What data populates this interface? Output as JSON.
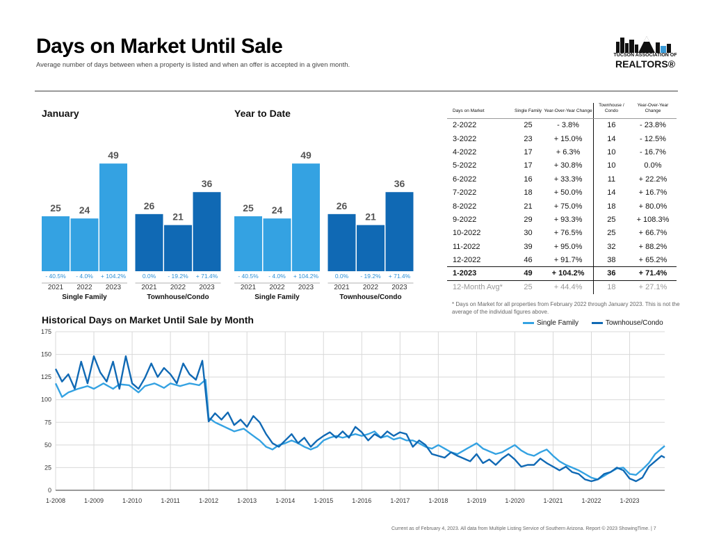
{
  "header": {
    "title": "Days on Market Until Sale",
    "subtitle": "Average number of days between when a property is listed and when an offer is accepted in a given month."
  },
  "logo": {
    "line1": "TUCSON ASSOCIATION OF",
    "line2": "REALTORS®"
  },
  "colors": {
    "single_family": "#34a2e2",
    "townhouse": "#1069b4",
    "pct_text": "#2a8fd6",
    "grid": "#d8d8d8"
  },
  "chart_data": [
    {
      "type": "bar",
      "title": "January",
      "groups": [
        {
          "name": "Single Family",
          "categories": [
            "2021",
            "2022",
            "2023"
          ],
          "values": [
            25,
            24,
            49
          ],
          "changes": [
            "- 40.5%",
            "- 4.0%",
            "+ 104.2%"
          ]
        },
        {
          "name": "Townhouse/Condo",
          "categories": [
            "2021",
            "2022",
            "2023"
          ],
          "values": [
            26,
            21,
            36
          ],
          "changes": [
            "0.0%",
            "- 19.2%",
            "+ 71.4%"
          ]
        }
      ]
    },
    {
      "type": "bar",
      "title": "Year to Date",
      "groups": [
        {
          "name": "Single Family",
          "categories": [
            "2021",
            "2022",
            "2023"
          ],
          "values": [
            25,
            24,
            49
          ],
          "changes": [
            "- 40.5%",
            "- 4.0%",
            "+ 104.2%"
          ]
        },
        {
          "name": "Townhouse/Condo",
          "categories": [
            "2021",
            "2022",
            "2023"
          ],
          "values": [
            26,
            21,
            36
          ],
          "changes": [
            "0.0%",
            "- 19.2%",
            "+ 71.4%"
          ]
        }
      ]
    },
    {
      "type": "table",
      "columns": [
        "Days on Market",
        "Single Family",
        "Year-Over-Year Change",
        "Townhouse / Condo",
        "Year-Over-Year Change"
      ],
      "rows": [
        [
          "2-2022",
          "25",
          "- 3.8%",
          "16",
          "- 23.8%"
        ],
        [
          "3-2022",
          "23",
          "+ 15.0%",
          "14",
          "- 12.5%"
        ],
        [
          "4-2022",
          "17",
          "+ 6.3%",
          "10",
          "- 16.7%"
        ],
        [
          "5-2022",
          "17",
          "+ 30.8%",
          "10",
          "0.0%"
        ],
        [
          "6-2022",
          "16",
          "+ 33.3%",
          "11",
          "+ 22.2%"
        ],
        [
          "7-2022",
          "18",
          "+ 50.0%",
          "14",
          "+ 16.7%"
        ],
        [
          "8-2022",
          "21",
          "+ 75.0%",
          "18",
          "+ 80.0%"
        ],
        [
          "9-2022",
          "29",
          "+ 93.3%",
          "25",
          "+ 108.3%"
        ],
        [
          "10-2022",
          "30",
          "+ 76.5%",
          "25",
          "+ 66.7%"
        ],
        [
          "11-2022",
          "39",
          "+ 95.0%",
          "32",
          "+ 88.2%"
        ],
        [
          "12-2022",
          "46",
          "+ 91.7%",
          "38",
          "+ 65.2%"
        ],
        [
          "1-2023",
          "49",
          "+ 104.2%",
          "36",
          "+ 71.4%"
        ],
        [
          "12-Month Avg*",
          "25",
          "+ 44.4%",
          "18",
          "+ 27.1%"
        ]
      ],
      "footnote": "* Days on Market for all properties from February 2022 through January 2023. This is not the average of the individual figures above."
    },
    {
      "type": "line",
      "title": "Historical Days on Market Until Sale by Month",
      "x_ticks": [
        "1-2008",
        "1-2009",
        "1-2010",
        "1-2011",
        "1-2012",
        "1-2013",
        "1-2014",
        "1-2015",
        "1-2016",
        "1-2017",
        "1-2018",
        "1-2019",
        "1-2020",
        "1-2021",
        "1-2022",
        "1-2023"
      ],
      "y_ticks": [
        "0",
        "25",
        "50",
        "75",
        "100",
        "125",
        "150",
        "175"
      ],
      "ylim": [
        0,
        175
      ],
      "x_start": "1-2008",
      "grid": true,
      "legend": "top-right",
      "series": [
        {
          "name": "Single Family",
          "anchors": [
            [
              0,
              118
            ],
            [
              2,
              103
            ],
            [
              4,
              108
            ],
            [
              7,
              112
            ],
            [
              10,
              115
            ],
            [
              12,
              112
            ],
            [
              15,
              118
            ],
            [
              18,
              112
            ],
            [
              20,
              117
            ],
            [
              23,
              116
            ],
            [
              26,
              108
            ],
            [
              28,
              115
            ],
            [
              31,
              118
            ],
            [
              34,
              113
            ],
            [
              36,
              118
            ],
            [
              39,
              115
            ],
            [
              42,
              118
            ],
            [
              45,
              116
            ],
            [
              47,
              122
            ],
            [
              48,
              80
            ],
            [
              50,
              75
            ],
            [
              53,
              70
            ],
            [
              56,
              65
            ],
            [
              59,
              68
            ],
            [
              62,
              60
            ],
            [
              64,
              55
            ],
            [
              66,
              48
            ],
            [
              68,
              45
            ],
            [
              70,
              50
            ],
            [
              72,
              52
            ],
            [
              74,
              55
            ],
            [
              76,
              52
            ],
            [
              78,
              48
            ],
            [
              80,
              45
            ],
            [
              82,
              48
            ],
            [
              84,
              55
            ],
            [
              86,
              58
            ],
            [
              88,
              60
            ],
            [
              90,
              58
            ],
            [
              92,
              60
            ],
            [
              94,
              62
            ],
            [
              96,
              60
            ],
            [
              98,
              62
            ],
            [
              100,
              65
            ],
            [
              102,
              58
            ],
            [
              104,
              60
            ],
            [
              106,
              56
            ],
            [
              108,
              58
            ],
            [
              110,
              55
            ],
            [
              112,
              55
            ],
            [
              114,
              52
            ],
            [
              116,
              48
            ],
            [
              118,
              46
            ],
            [
              120,
              50
            ],
            [
              122,
              46
            ],
            [
              124,
              42
            ],
            [
              126,
              40
            ],
            [
              128,
              44
            ],
            [
              130,
              48
            ],
            [
              132,
              52
            ],
            [
              134,
              46
            ],
            [
              136,
              43
            ],
            [
              138,
              40
            ],
            [
              140,
              42
            ],
            [
              142,
              46
            ],
            [
              144,
              50
            ],
            [
              146,
              44
            ],
            [
              148,
              40
            ],
            [
              150,
              38
            ],
            [
              152,
              42
            ],
            [
              154,
              45
            ],
            [
              156,
              38
            ],
            [
              158,
              32
            ],
            [
              160,
              28
            ],
            [
              162,
              25
            ],
            [
              164,
              22
            ],
            [
              166,
              18
            ],
            [
              168,
              14
            ],
            [
              170,
              12
            ],
            [
              172,
              16
            ],
            [
              174,
              20
            ],
            [
              176,
              24
            ],
            [
              178,
              25
            ],
            [
              180,
              18
            ],
            [
              182,
              17
            ],
            [
              184,
              23
            ],
            [
              186,
              30
            ],
            [
              188,
              40
            ],
            [
              190,
              46
            ],
            [
              191,
              49
            ]
          ]
        },
        {
          "name": "Townhouse/Condo",
          "anchors": [
            [
              0,
              134
            ],
            [
              2,
              120
            ],
            [
              4,
              128
            ],
            [
              6,
              112
            ],
            [
              8,
              142
            ],
            [
              10,
              118
            ],
            [
              12,
              148
            ],
            [
              14,
              130
            ],
            [
              16,
              120
            ],
            [
              18,
              142
            ],
            [
              20,
              112
            ],
            [
              22,
              148
            ],
            [
              24,
              118
            ],
            [
              26,
              112
            ],
            [
              28,
              124
            ],
            [
              30,
              140
            ],
            [
              32,
              125
            ],
            [
              34,
              135
            ],
            [
              36,
              128
            ],
            [
              38,
              118
            ],
            [
              40,
              140
            ],
            [
              42,
              128
            ],
            [
              44,
              122
            ],
            [
              46,
              143
            ],
            [
              48,
              76
            ],
            [
              50,
              85
            ],
            [
              52,
              78
            ],
            [
              54,
              86
            ],
            [
              56,
              72
            ],
            [
              58,
              78
            ],
            [
              60,
              70
            ],
            [
              62,
              82
            ],
            [
              64,
              75
            ],
            [
              66,
              62
            ],
            [
              68,
              52
            ],
            [
              70,
              48
            ],
            [
              72,
              55
            ],
            [
              74,
              62
            ],
            [
              76,
              52
            ],
            [
              78,
              58
            ],
            [
              80,
              48
            ],
            [
              82,
              55
            ],
            [
              84,
              60
            ],
            [
              86,
              64
            ],
            [
              88,
              58
            ],
            [
              90,
              65
            ],
            [
              92,
              58
            ],
            [
              94,
              70
            ],
            [
              96,
              64
            ],
            [
              98,
              55
            ],
            [
              100,
              62
            ],
            [
              102,
              58
            ],
            [
              104,
              65
            ],
            [
              106,
              60
            ],
            [
              108,
              64
            ],
            [
              110,
              62
            ],
            [
              112,
              48
            ],
            [
              114,
              55
            ],
            [
              116,
              50
            ],
            [
              118,
              40
            ],
            [
              120,
              38
            ],
            [
              122,
              36
            ],
            [
              124,
              42
            ],
            [
              126,
              38
            ],
            [
              128,
              35
            ],
            [
              130,
              32
            ],
            [
              132,
              40
            ],
            [
              134,
              30
            ],
            [
              136,
              34
            ],
            [
              138,
              28
            ],
            [
              140,
              35
            ],
            [
              142,
              40
            ],
            [
              144,
              34
            ],
            [
              146,
              26
            ],
            [
              148,
              28
            ],
            [
              150,
              28
            ],
            [
              152,
              35
            ],
            [
              154,
              30
            ],
            [
              156,
              26
            ],
            [
              158,
              22
            ],
            [
              160,
              26
            ],
            [
              162,
              20
            ],
            [
              164,
              18
            ],
            [
              166,
              12
            ],
            [
              168,
              10
            ],
            [
              170,
              12
            ],
            [
              172,
              18
            ],
            [
              174,
              20
            ],
            [
              176,
              25
            ],
            [
              178,
              22
            ],
            [
              180,
              13
            ],
            [
              182,
              10
            ],
            [
              184,
              14
            ],
            [
              186,
              26
            ],
            [
              188,
              32
            ],
            [
              190,
              38
            ],
            [
              191,
              36
            ]
          ]
        }
      ]
    }
  ],
  "footer": "Current as of February 4, 2023. All data from Multiple Listing Service of Southern Arizona. Report © 2023 ShowingTime. | 7"
}
